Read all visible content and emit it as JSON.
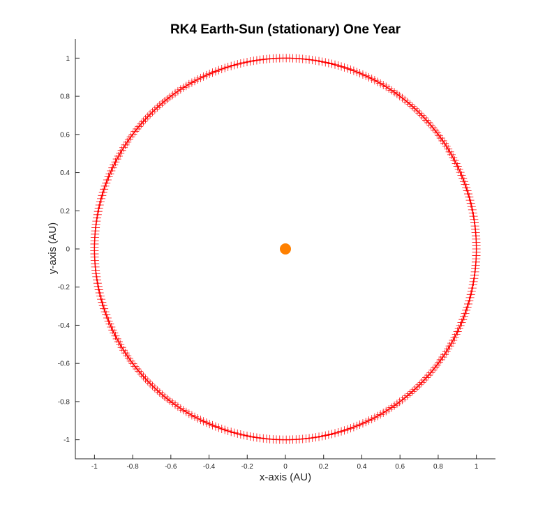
{
  "chart_data": {
    "type": "scatter",
    "title": "RK4 Earth-Sun (stationary) One Year",
    "xlabel": "x-axis (AU)",
    "ylabel": "y-axis (AU)",
    "xlim": [
      -1.1,
      1.1
    ],
    "ylim": [
      -1.1,
      1.1
    ],
    "xticks": [
      -1,
      -0.8,
      -0.6,
      -0.4,
      -0.2,
      0,
      0.2,
      0.4,
      0.6,
      0.8,
      1
    ],
    "yticks": [
      -1,
      -0.8,
      -0.6,
      -0.4,
      -0.2,
      0,
      0.2,
      0.4,
      0.6,
      0.8,
      1
    ],
    "grid": false,
    "series": [
      {
        "marker": "plus",
        "color": "#ff0000",
        "orbit_radius": 1.0,
        "center": [
          0,
          0
        ],
        "num_points": 365,
        "connected": true
      },
      {
        "marker": "circle-filled",
        "color": "#ff8000",
        "points": [
          [
            0,
            0
          ]
        ]
      }
    ]
  }
}
